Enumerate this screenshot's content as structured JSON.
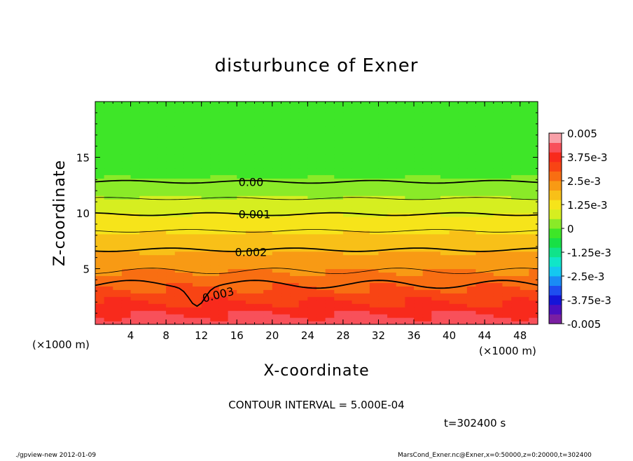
{
  "chart_data": {
    "type": "heatmap",
    "title": "disturbunce of Exner",
    "xlabel": "X-coordinate",
    "ylabel": "Z-coordinate",
    "x_unit_left": "(×1000 m)",
    "x_unit_right": "(×1000 m)",
    "xlim": [
      0,
      50
    ],
    "ylim": [
      0,
      20
    ],
    "xticks": [
      4,
      8,
      12,
      16,
      20,
      24,
      28,
      32,
      36,
      40,
      44,
      48
    ],
    "yticks": [
      5,
      10,
      15
    ],
    "contour_interval_text": "CONTOUR INTERVAL = 5.000E-04",
    "time_text": "t=302400 s",
    "footer_left": "./gpview-new   2012-01-09",
    "footer_right": "MarsCond_Exner.nc@Exner,x=0:50000,z=0:20000,t=302400",
    "contour_labels": [
      {
        "text": "0.00",
        "x": 17.6,
        "z": 12.8
      },
      {
        "text": "0.001",
        "x": 18.0,
        "z": 9.9
      },
      {
        "text": "0.002",
        "x": 17.6,
        "z": 6.5
      },
      {
        "text": "0.003",
        "x": 14.0,
        "z": 2.7
      }
    ],
    "colorbar": {
      "min": -0.005,
      "max": 0.005,
      "labels": [
        "0.005",
        "3.75e-3",
        "2.5e-3",
        "1.25e-3",
        "0",
        "-1.25e-3",
        "-2.5e-3",
        "-3.75e-3",
        "-0.005"
      ],
      "colors": [
        "#7a1fa2",
        "#4b0fc0",
        "#1414d8",
        "#1e4ef0",
        "#1a8cf5",
        "#14c8f0",
        "#10e6c8",
        "#10e38a",
        "#18e046",
        "#3ee628",
        "#8aea28",
        "#d6ee20",
        "#f6e41a",
        "#f8c018",
        "#f89a14",
        "#f86e12",
        "#f84414",
        "#f82a1c",
        "#f8505a",
        "#f8a0a8"
      ]
    },
    "field_profile": {
      "description_levels_z": [
        0.5,
        1.5,
        2.5,
        3.5,
        4.5,
        5.5,
        6.5,
        7.5,
        8.5,
        9.5,
        10.5,
        11.5,
        12.5,
        13.5,
        14.5,
        15.5,
        16.5,
        17.5,
        18.5,
        19.5
      ],
      "values": [
        0.0042,
        0.0037,
        0.0033,
        0.0029,
        0.0026,
        0.0023,
        0.002,
        0.0017,
        0.0014,
        0.0011,
        0.0008,
        0.0005,
        0.0002,
        -0.0001,
        -0.0002,
        -0.0003,
        -0.0003,
        -0.0003,
        -0.0003,
        -0.0003
      ]
    }
  }
}
